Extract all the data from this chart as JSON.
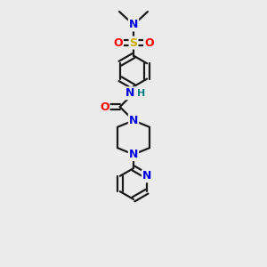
{
  "background_color": "#ebebeb",
  "bond_color": "#1a1a1a",
  "atom_colors": {
    "N": "#0000e0",
    "O": "#ff0000",
    "S": "#ccaa00",
    "C": "#1a1a1a",
    "H": "#008080"
  },
  "figsize": [
    3.0,
    3.0
  ],
  "dpi": 100,
  "xlim": [
    0,
    10
  ],
  "ylim": [
    0,
    14
  ],
  "lw": 1.6,
  "fs": 9.0,
  "fs_small": 8.0
}
